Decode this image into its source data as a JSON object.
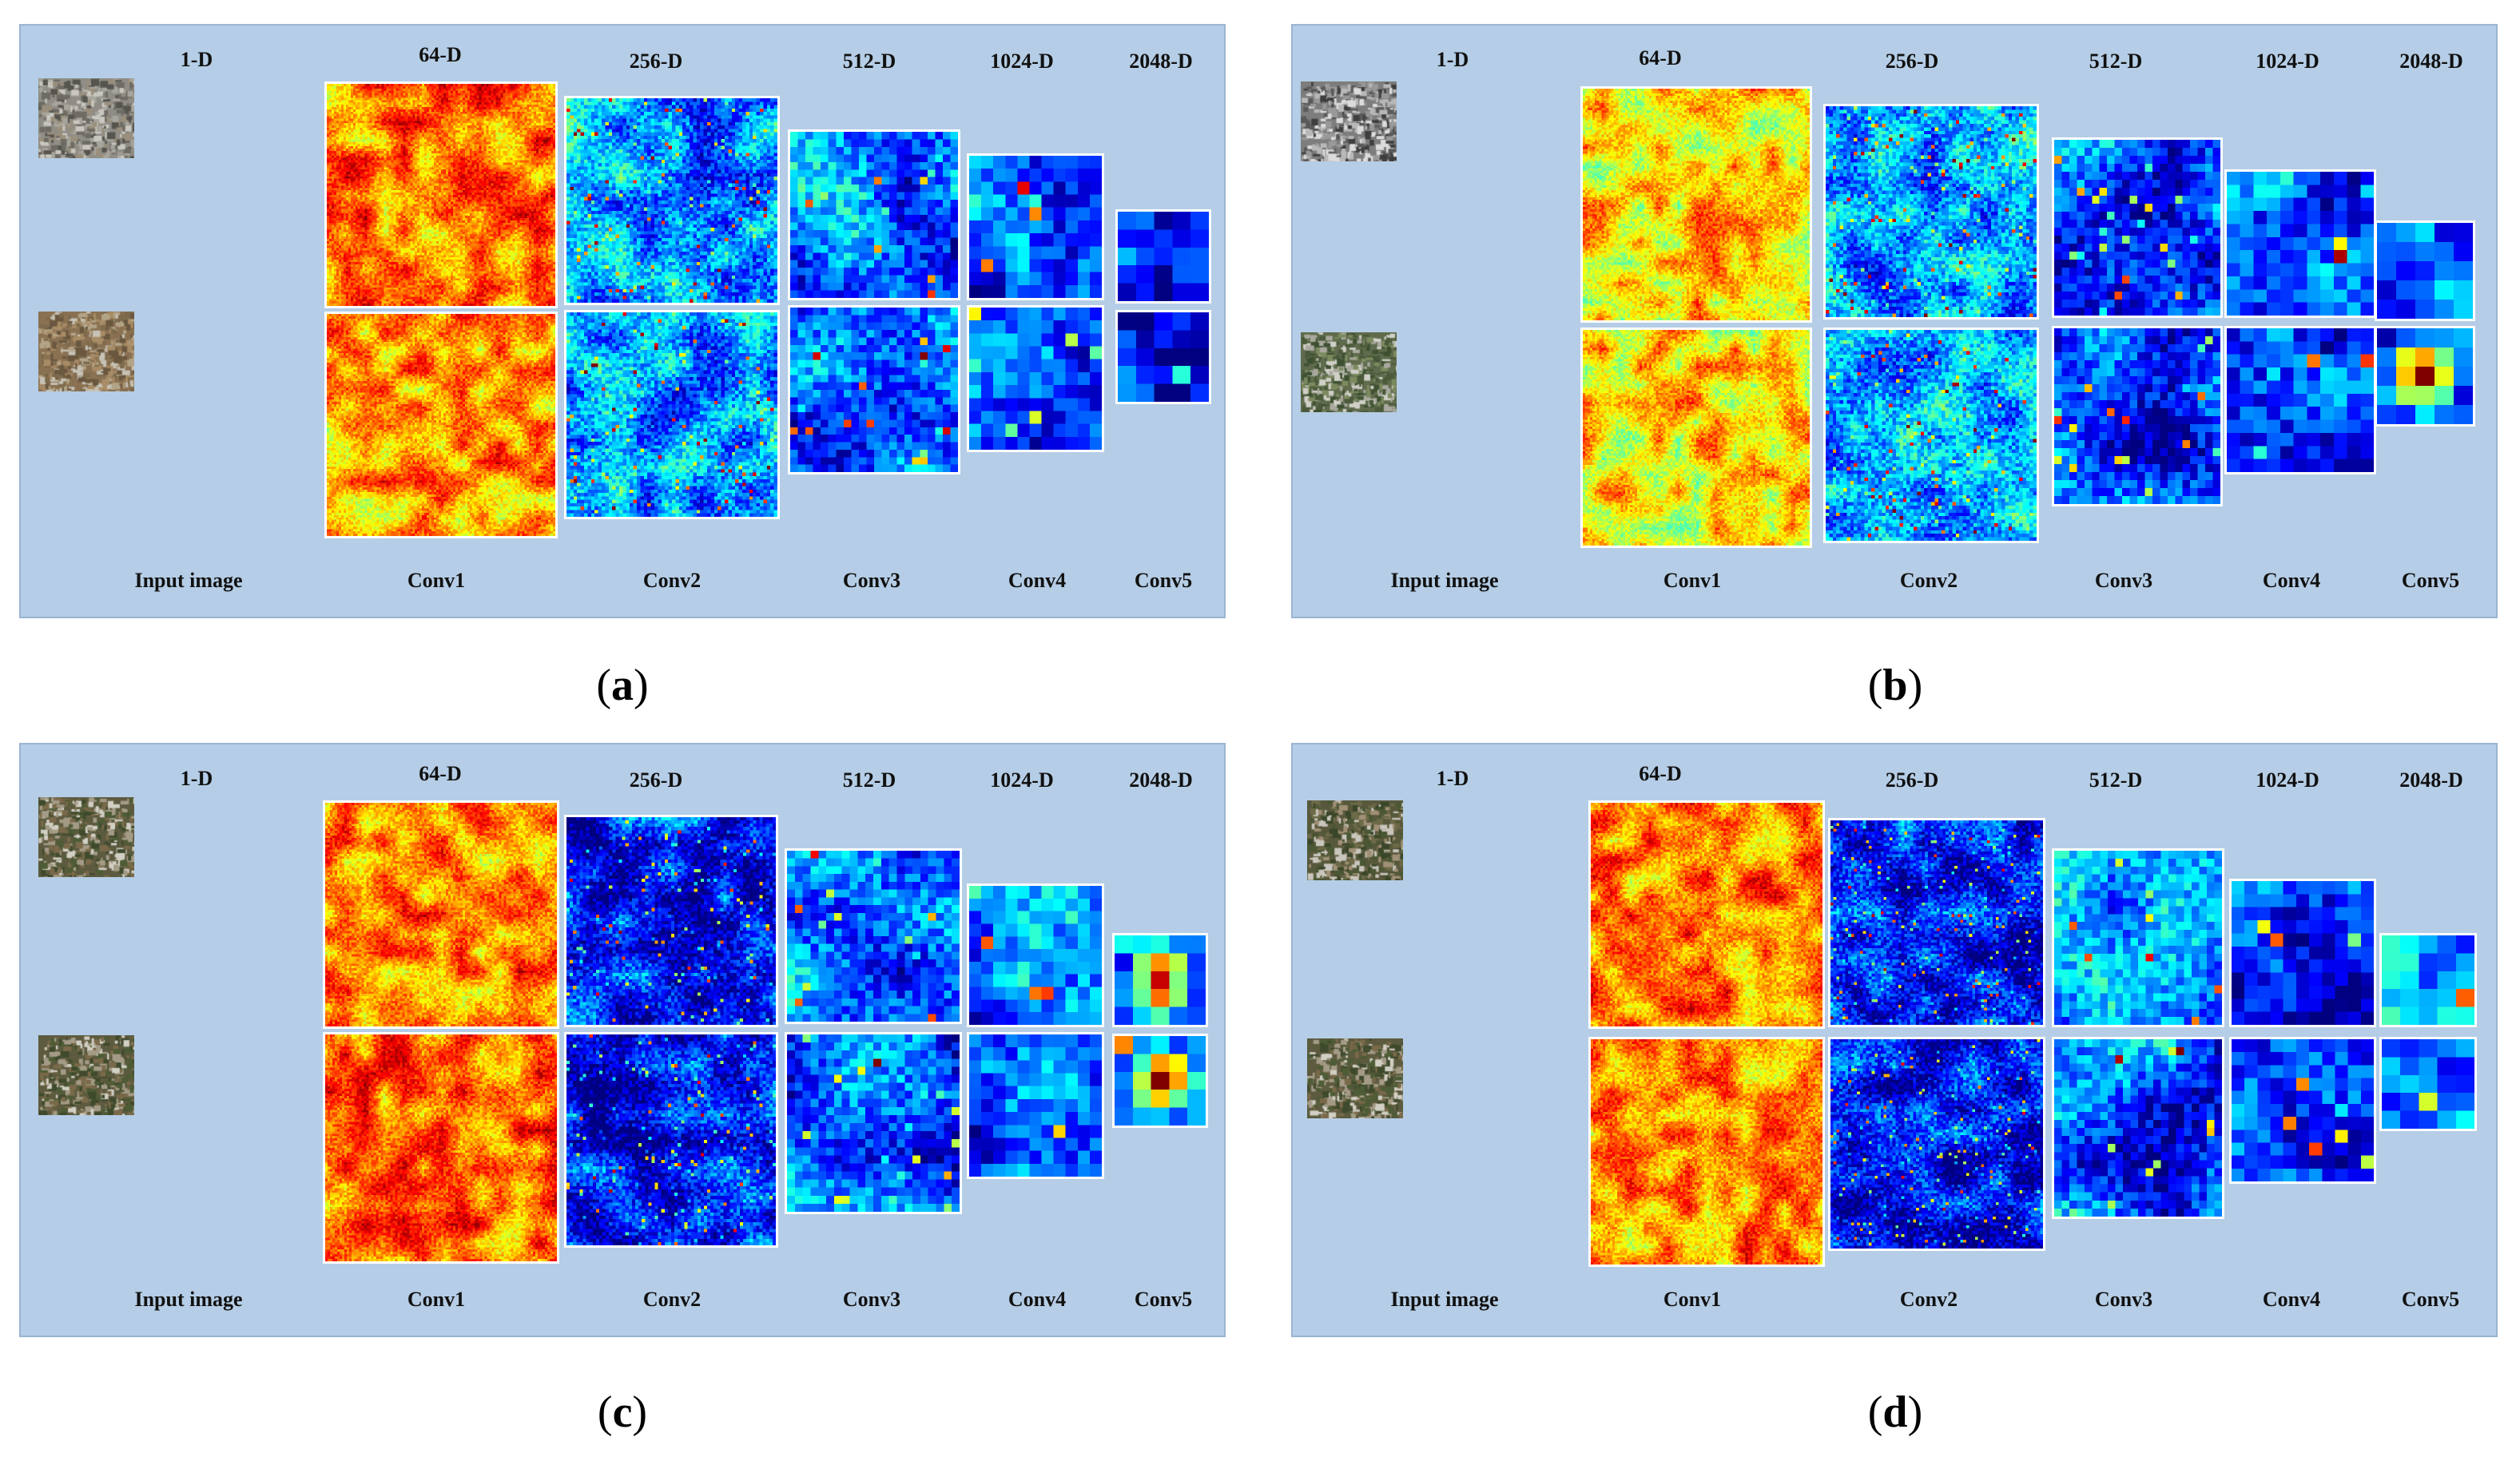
{
  "panels": [
    {
      "id": "a",
      "label_letter": "a",
      "dims": [
        "1-D",
        "64-D",
        "256-D",
        "512-D",
        "1024-D",
        "2048-D"
      ],
      "layers": [
        "Input image",
        "Conv1",
        "Conv2",
        "Conv3",
        "Conv4",
        "Conv5"
      ]
    },
    {
      "id": "b",
      "label_letter": "b",
      "dims": [
        "1-D",
        "64-D",
        "256-D",
        "512-D",
        "1024-D",
        "2048-D"
      ],
      "layers": [
        "Input image",
        "Conv1",
        "Conv2",
        "Conv3",
        "Conv4",
        "Conv5"
      ]
    },
    {
      "id": "c",
      "label_letter": "c",
      "dims": [
        "1-D",
        "64-D",
        "256-D",
        "512-D",
        "1024-D",
        "2048-D"
      ],
      "layers": [
        "Input image",
        "Conv1",
        "Conv2",
        "Conv3",
        "Conv4",
        "Conv5"
      ]
    },
    {
      "id": "d",
      "label_letter": "d",
      "dims": [
        "1-D",
        "64-D",
        "256-D",
        "512-D",
        "1024-D",
        "2048-D"
      ],
      "layers": [
        "Input image",
        "Conv1",
        "Conv2",
        "Conv3",
        "Conv4",
        "Conv5"
      ]
    }
  ],
  "colors": {
    "panel_bg": "#b5cde6",
    "jet_low": "#00007f",
    "jet_high": "#ff0000"
  }
}
